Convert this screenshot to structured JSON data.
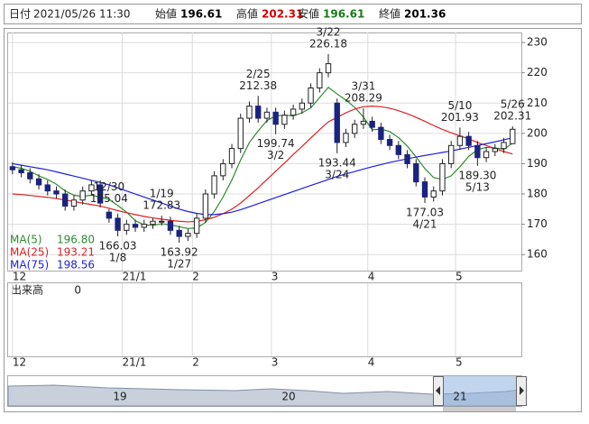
{
  "header": {
    "date_label": "日付",
    "date": "2021/05/26 11:30",
    "fields": [
      {
        "label": "始値",
        "value": 196.61,
        "color": "#000000"
      },
      {
        "label": "高値",
        "value": 202.31,
        "color": "#d40000"
      },
      {
        "label": "安値",
        "value": 196.61,
        "color": "#1a7a1a"
      },
      {
        "label": "終値",
        "value": 201.36,
        "color": "#000000"
      }
    ]
  },
  "chart_data": {
    "type": "candlestick",
    "open": [
      189,
      188,
      187,
      185,
      183,
      181,
      180,
      176,
      178,
      181,
      183,
      174,
      172,
      168,
      170,
      169,
      170,
      171,
      171,
      168,
      166,
      167,
      172,
      180,
      186,
      190,
      195,
      205,
      209,
      205,
      207,
      203,
      206,
      208,
      210,
      215,
      220,
      210,
      197,
      200,
      203,
      204,
      202,
      198,
      196,
      193,
      190,
      184,
      179,
      181,
      190,
      196,
      199,
      196,
      192,
      194,
      195,
      196.61
    ],
    "high": [
      190.5,
      189.5,
      188.5,
      186.5,
      184.5,
      182.5,
      181.5,
      179.5,
      182.5,
      184.5,
      184.5,
      175.04,
      173.5,
      171.5,
      171.5,
      171.5,
      172,
      172.83,
      172.5,
      169.5,
      168.5,
      173.5,
      181.5,
      187.5,
      191.5,
      196.5,
      206.5,
      210.5,
      212.38,
      208.5,
      208.5,
      207.5,
      209.5,
      211.5,
      216.5,
      221.5,
      226.18,
      211.5,
      201.5,
      204.5,
      208.29,
      205.5,
      203.5,
      199.5,
      197.5,
      194.5,
      191.5,
      185.5,
      182.5,
      191.5,
      197.5,
      201.93,
      200.5,
      197.5,
      195.5,
      196.5,
      198.5,
      202.31
    ],
    "low": [
      186.5,
      185.5,
      183.5,
      181.5,
      179.5,
      178.5,
      174.5,
      174.5,
      176.5,
      179.5,
      175.5,
      170.5,
      166.03,
      166.5,
      167.5,
      167.5,
      168.5,
      169.5,
      166.5,
      163.92,
      164.5,
      165.5,
      170.5,
      178.5,
      184.5,
      188.5,
      193.5,
      203.5,
      203.5,
      203.5,
      199.74,
      201.5,
      204.5,
      206.5,
      208.5,
      213.5,
      218.5,
      193.44,
      195.5,
      198.5,
      201.5,
      200.5,
      196.5,
      194.5,
      191.5,
      188.5,
      182.5,
      177.03,
      177.5,
      179.5,
      188.5,
      194.5,
      194.5,
      189.3,
      190.5,
      192.5,
      193.5,
      196.61
    ],
    "close": [
      188,
      187,
      185,
      183,
      181,
      180,
      176,
      178,
      181,
      183,
      177,
      172,
      168,
      170,
      169,
      170,
      171,
      171,
      168,
      166,
      167,
      172,
      180,
      186,
      190,
      195,
      205,
      209,
      205,
      207,
      203,
      206,
      208,
      210,
      215,
      220,
      223,
      197,
      200,
      203,
      204,
      202,
      198,
      196,
      193,
      190,
      184,
      179,
      181,
      190,
      196,
      199,
      196,
      192,
      194,
      195,
      197,
      201.36
    ],
    "up_color": "#ffffff",
    "down_color": "#1a237e",
    "series": [
      {
        "name": "MA(5)",
        "color": "#2e8b2e",
        "legend_value": {
          "value": 196.8,
          "label": "196.80"
        },
        "values": [
          189,
          188.5,
          187.5,
          186,
          184.8,
          183.2,
          181,
          179.6,
          179.2,
          179.6,
          179,
          178.2,
          176.2,
          174,
          171.2,
          169.8,
          169.6,
          170.2,
          169.8,
          169.2,
          168.6,
          168.8,
          170.6,
          174.2,
          179,
          184.6,
          191.2,
          197,
          200.8,
          204.2,
          205.8,
          206,
          205.8,
          206.8,
          208.4,
          211.8,
          215.2,
          213,
          211,
          208.6,
          205.4,
          201.2,
          201.4,
          200.6,
          198.6,
          195.8,
          192.2,
          188.4,
          185.4,
          184.8,
          186,
          189,
          192.4,
          194.6,
          195.4,
          195.2,
          194.8,
          196.8
        ]
      },
      {
        "name": "MA(25)",
        "color": "#e02020",
        "legend_value": 193.21,
        "values": [
          180,
          179.8,
          179.5,
          179.2,
          178.9,
          178.5,
          178,
          177.5,
          177,
          176.5,
          176,
          175.3,
          174.5,
          173.8,
          173.2,
          172.6,
          172.1,
          171.7,
          171.3,
          171,
          170.8,
          171,
          171.5,
          172.3,
          173.5,
          175,
          177,
          179.5,
          182,
          184.8,
          187.5,
          190.2,
          193,
          195.7,
          198.5,
          201.2,
          203.8,
          205.3,
          206.8,
          208,
          208.8,
          209,
          208.8,
          208.3,
          207.5,
          206.5,
          205.3,
          204,
          202.6,
          201.3,
          200.2,
          199.2,
          198.2,
          197,
          196,
          195,
          194,
          193.21
        ]
      },
      {
        "name": "MA(75)",
        "color": "#2020e0",
        "legend_value": 198.56,
        "values": [
          190,
          189.5,
          189,
          188.5,
          188,
          187.3,
          186.6,
          185.9,
          185.2,
          184.5,
          183.8,
          183,
          182,
          181,
          180,
          179,
          178,
          177,
          176,
          175,
          174.2,
          173.6,
          173.2,
          173.2,
          173.5,
          174,
          174.8,
          175.8,
          176.8,
          177.8,
          178.8,
          179.8,
          180.8,
          181.8,
          182.8,
          183.8,
          184.8,
          185.8,
          186.6,
          187.4,
          188.2,
          189,
          189.7,
          190.4,
          191,
          191.6,
          192.2,
          192.7,
          193.2,
          193.7,
          194.2,
          194.8,
          195.4,
          196,
          196.6,
          197.2,
          197.9,
          198.56
        ]
      }
    ],
    "annotations": [
      {
        "x": 11,
        "date": "12/30",
        "price": 175.04,
        "side": "high"
      },
      {
        "x": 12,
        "date": "1/8",
        "price": 166.03,
        "side": "low"
      },
      {
        "x": 17,
        "date": "1/19",
        "price": 172.83,
        "side": "high"
      },
      {
        "x": 19,
        "date": "1/27",
        "price": 163.92,
        "side": "low"
      },
      {
        "x": 28,
        "date": "2/25",
        "price": 212.38,
        "side": "high"
      },
      {
        "x": 30,
        "date": "3/2",
        "price": 199.74,
        "side": "low"
      },
      {
        "x": 36,
        "date": "3/22",
        "price": 226.18,
        "side": "high"
      },
      {
        "x": 37,
        "date": "3/24",
        "price": 193.44,
        "side": "low"
      },
      {
        "x": 40,
        "date": "3/31",
        "price": 208.29,
        "side": "high"
      },
      {
        "x": 47,
        "date": "4/21",
        "price": 177.03,
        "side": "low"
      },
      {
        "x": 51,
        "date": "5/10",
        "price": 201.93,
        "side": "high"
      },
      {
        "x": 53,
        "date": "5/13",
        "price": 189.3,
        "price_label": "189.30",
        "side": "low"
      },
      {
        "x": 57,
        "date": "5/26",
        "price": 202.31,
        "side": "high"
      }
    ],
    "xlim": [
      -0.5,
      58
    ],
    "xticks": [
      {
        "value": 0,
        "label": "12"
      },
      {
        "value": 12.5,
        "label": "21/1"
      },
      {
        "value": 20.5,
        "label": "2"
      },
      {
        "value": 29.5,
        "label": "3"
      },
      {
        "value": 40.5,
        "label": "4"
      },
      {
        "value": 50.5,
        "label": "5"
      }
    ],
    "ylim": [
      154.7,
      233.3
    ],
    "yticks": [
      160,
      170,
      180,
      190,
      200,
      210,
      220,
      230
    ],
    "grid": true
  },
  "volume": {
    "label": "出来高",
    "value": 0
  },
  "navigator": {
    "labels": [
      "19",
      "20",
      "21"
    ]
  }
}
